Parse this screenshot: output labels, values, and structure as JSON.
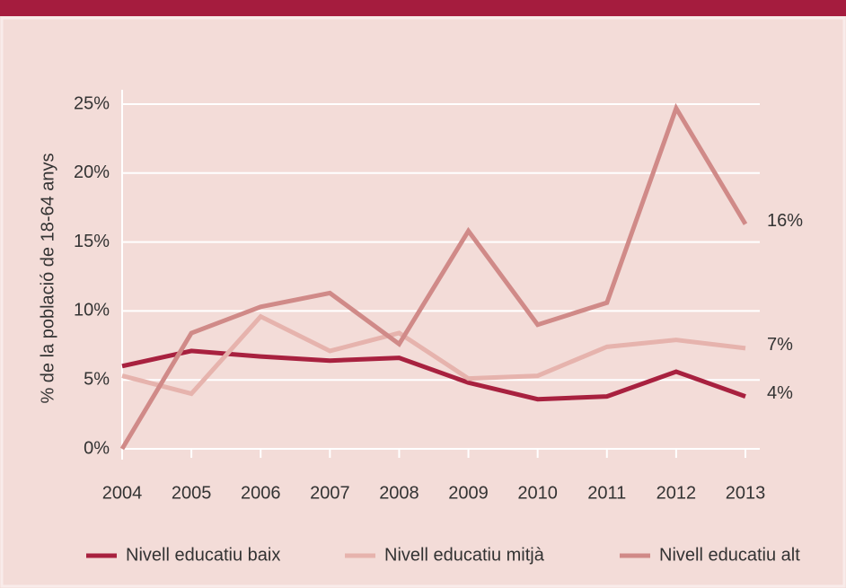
{
  "chart_data": {
    "type": "line",
    "y_label": "% de la població de 18-64 anys",
    "x": [
      "2004",
      "2005",
      "2006",
      "2007",
      "2008",
      "2009",
      "2010",
      "2011",
      "2012",
      "2013"
    ],
    "series": [
      {
        "name": "Nivell educatiu baix",
        "color": "#a8213f",
        "values": [
          6.0,
          7.1,
          6.7,
          6.4,
          6.6,
          4.8,
          3.6,
          3.8,
          5.6,
          3.8
        ],
        "value_labels": [
          null,
          null,
          null,
          null,
          null,
          null,
          null,
          null,
          null,
          "4%"
        ]
      },
      {
        "name": "Nivell educatiu mitjà",
        "color": "#e6b3ad",
        "values": [
          5.3,
          4.0,
          9.6,
          7.1,
          8.4,
          5.1,
          5.3,
          7.4,
          7.9,
          7.3
        ],
        "value_labels": [
          null,
          null,
          null,
          null,
          null,
          null,
          null,
          null,
          null,
          "7%"
        ]
      },
      {
        "name": "Nivell educatiu alt",
        "color": "#d08a88",
        "values": [
          0,
          8.4,
          10.3,
          11.3,
          7.6,
          15.8,
          9.0,
          10.6,
          24.7,
          16.3
        ],
        "value_labels": [
          null,
          null,
          null,
          null,
          null,
          null,
          null,
          null,
          null,
          "16%"
        ]
      }
    ],
    "ylim": [
      0,
      25
    ],
    "yticks": [
      {
        "value": 0,
        "label": "0%"
      },
      {
        "value": 5,
        "label": "5%"
      },
      {
        "value": 10,
        "label": "10%"
      },
      {
        "value": 15,
        "label": "15%"
      },
      {
        "value": 20,
        "label": "20%"
      },
      {
        "value": 25,
        "label": "25%"
      }
    ],
    "grid": true
  }
}
